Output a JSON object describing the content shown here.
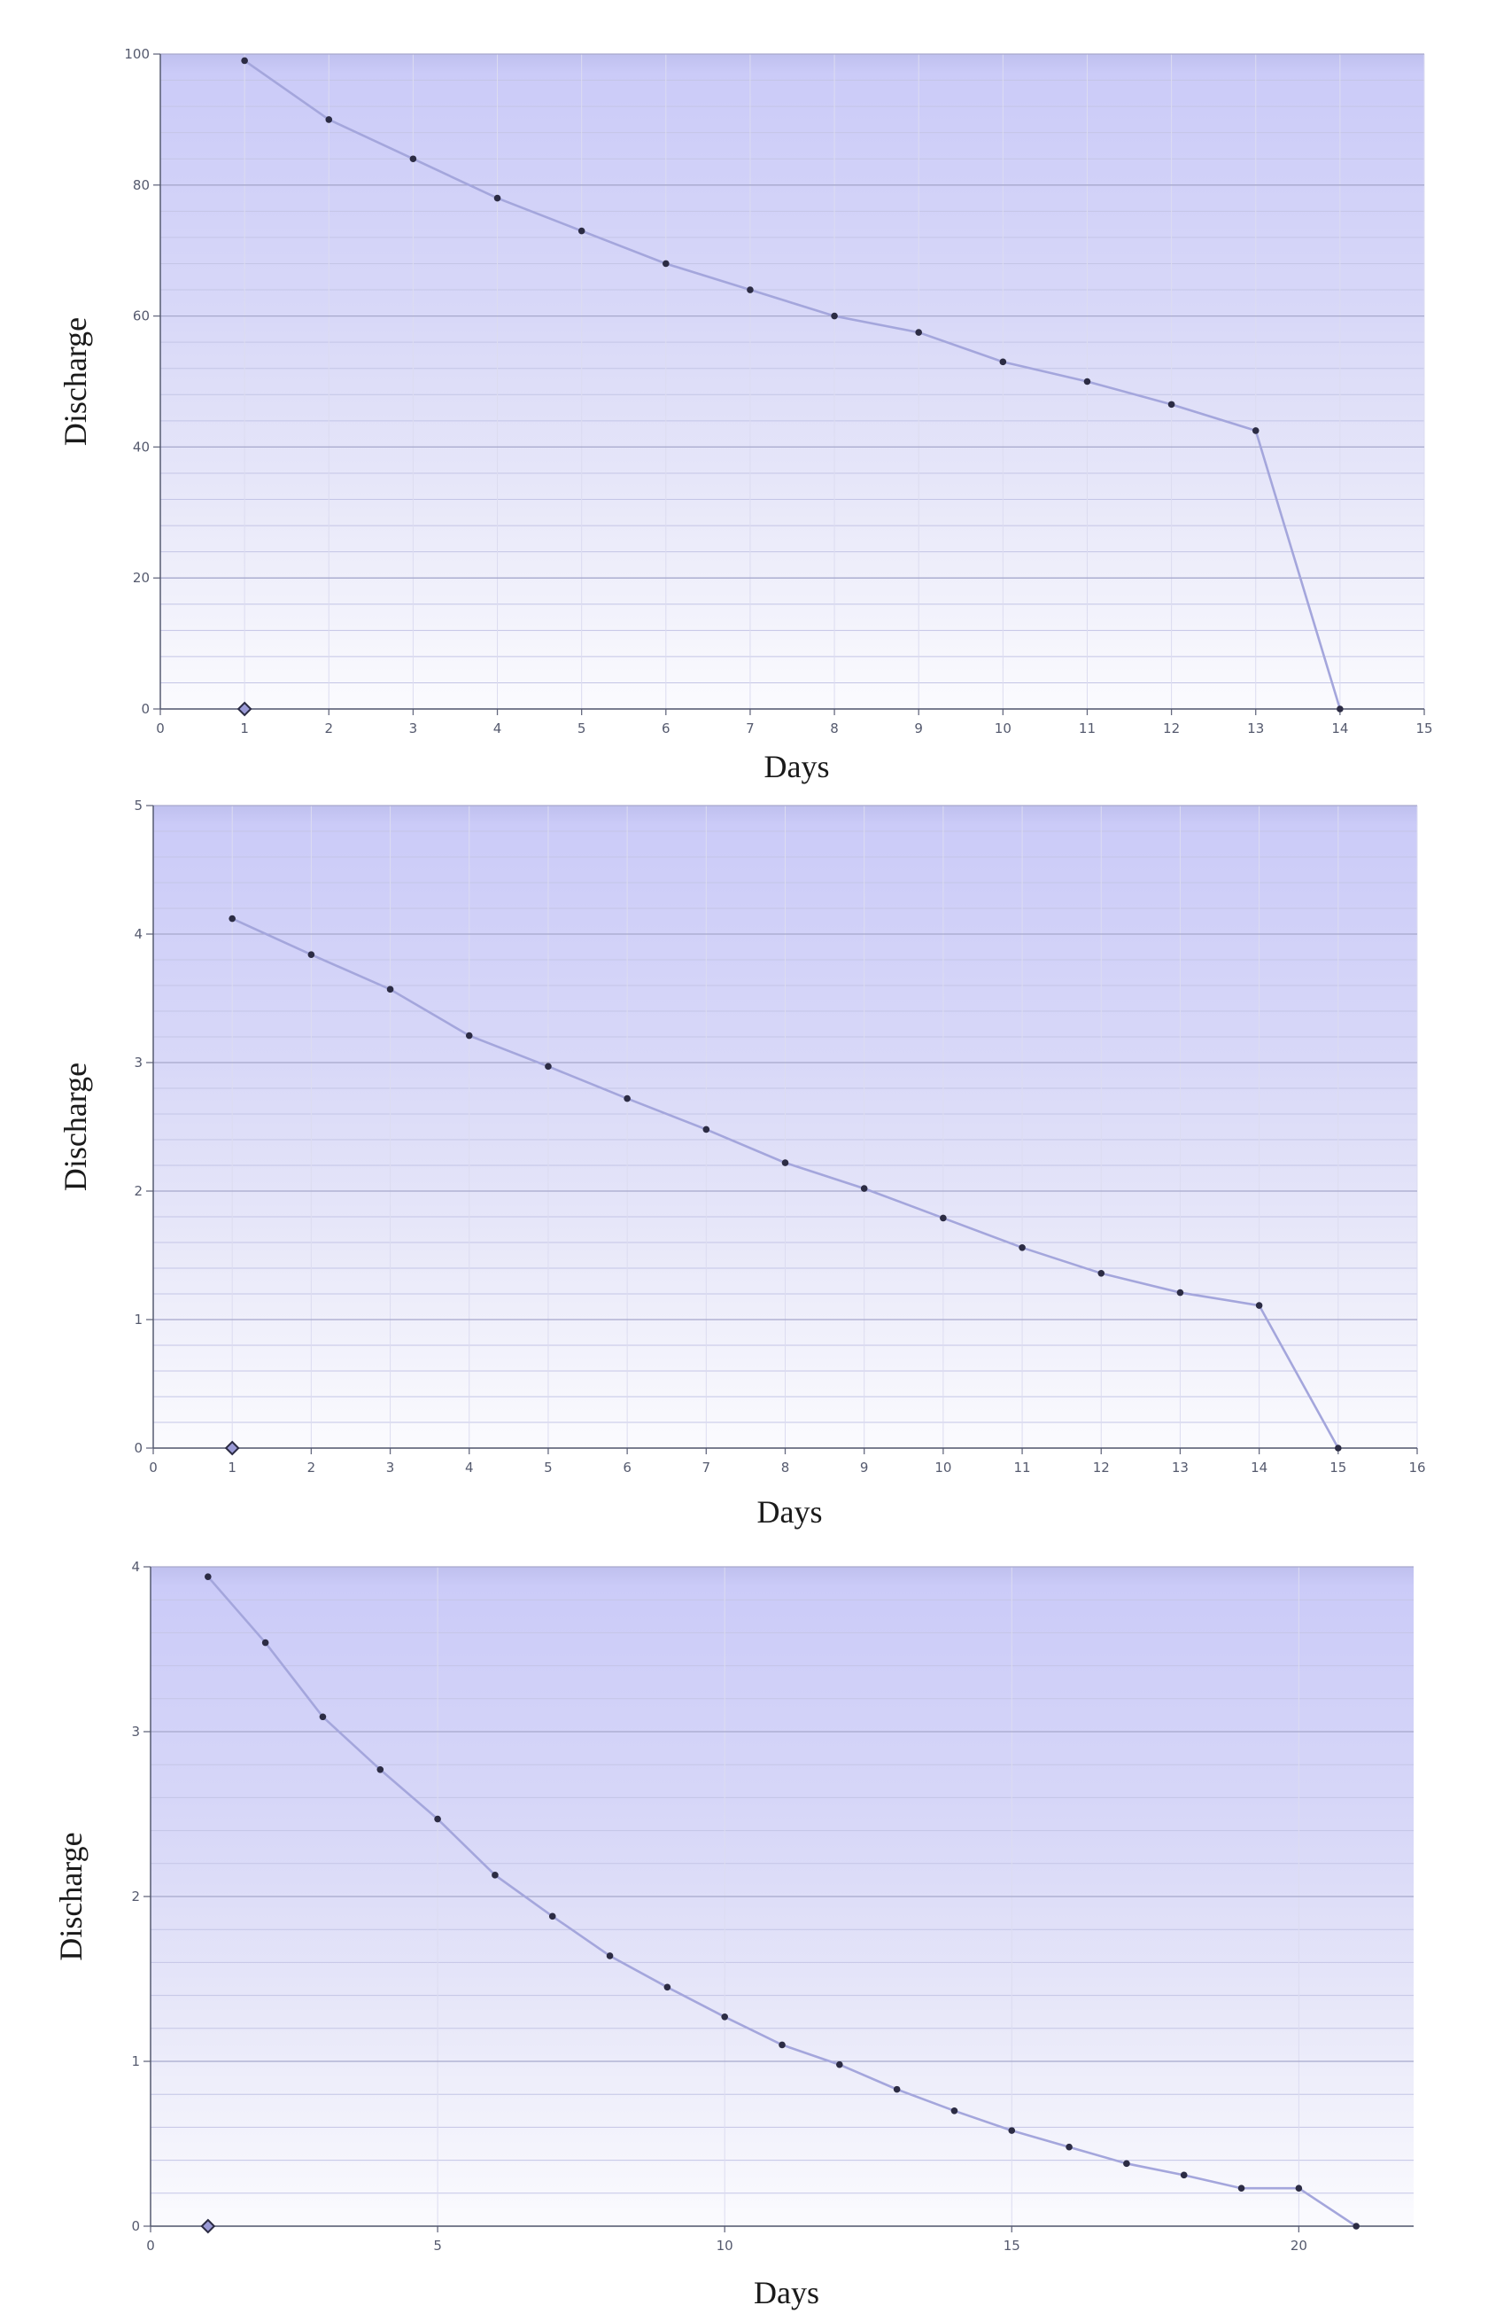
{
  "chart_data": [
    {
      "type": "line",
      "xlabel": "Days",
      "ylabel": "Discharge",
      "xlim": [
        0,
        15
      ],
      "ylim": [
        0,
        100
      ],
      "xticks": [
        0,
        1,
        2,
        3,
        4,
        5,
        6,
        7,
        8,
        9,
        10,
        11,
        12,
        13,
        14,
        15
      ],
      "yticks": [
        0,
        20,
        40,
        60,
        80,
        100
      ],
      "grid": true,
      "series": [
        {
          "x": [
            1,
            2,
            3,
            4,
            5,
            6,
            7,
            8,
            9,
            10,
            11,
            12,
            13,
            14
          ],
          "values": [
            99,
            90,
            84,
            78,
            73,
            68,
            64,
            60,
            57.5,
            53,
            50,
            46.5,
            42.5,
            0
          ]
        }
      ],
      "origin_marker": {
        "x": 1,
        "y": 0
      }
    },
    {
      "type": "line",
      "xlabel": "Days",
      "ylabel": "Discharge",
      "xlim": [
        0,
        16
      ],
      "ylim": [
        0,
        5
      ],
      "xticks": [
        0,
        1,
        2,
        3,
        4,
        5,
        6,
        7,
        8,
        9,
        10,
        11,
        12,
        13,
        14,
        15,
        16
      ],
      "yticks": [
        0,
        1,
        2,
        3,
        4,
        5
      ],
      "grid": true,
      "series": [
        {
          "x": [
            1,
            2,
            3,
            4,
            5,
            6,
            7,
            8,
            9,
            10,
            11,
            12,
            13,
            14,
            15
          ],
          "values": [
            4.12,
            3.84,
            3.57,
            3.21,
            2.97,
            2.72,
            2.48,
            2.22,
            2.02,
            1.79,
            1.56,
            1.36,
            1.21,
            1.11,
            0
          ]
        }
      ],
      "origin_marker": {
        "x": 1,
        "y": 0
      }
    },
    {
      "type": "line",
      "xlabel": "Days",
      "ylabel": "Discharge",
      "xlim": [
        0,
        22
      ],
      "ylim": [
        0,
        4
      ],
      "xticks": [
        0,
        5,
        10,
        15,
        20
      ],
      "yticks": [
        0,
        1,
        2,
        3,
        4
      ],
      "grid": true,
      "series": [
        {
          "x": [
            1,
            2,
            3,
            4,
            5,
            6,
            7,
            8,
            9,
            10,
            11,
            12,
            13,
            14,
            15,
            16,
            17,
            18,
            19,
            20,
            21
          ],
          "values": [
            3.94,
            3.54,
            3.09,
            2.77,
            2.47,
            2.13,
            1.88,
            1.64,
            1.45,
            1.27,
            1.1,
            0.98,
            0.83,
            0.7,
            0.58,
            0.48,
            0.38,
            0.31,
            0.23,
            0.23,
            0
          ]
        }
      ],
      "origin_marker": {
        "x": 1,
        "y": 0
      }
    }
  ]
}
